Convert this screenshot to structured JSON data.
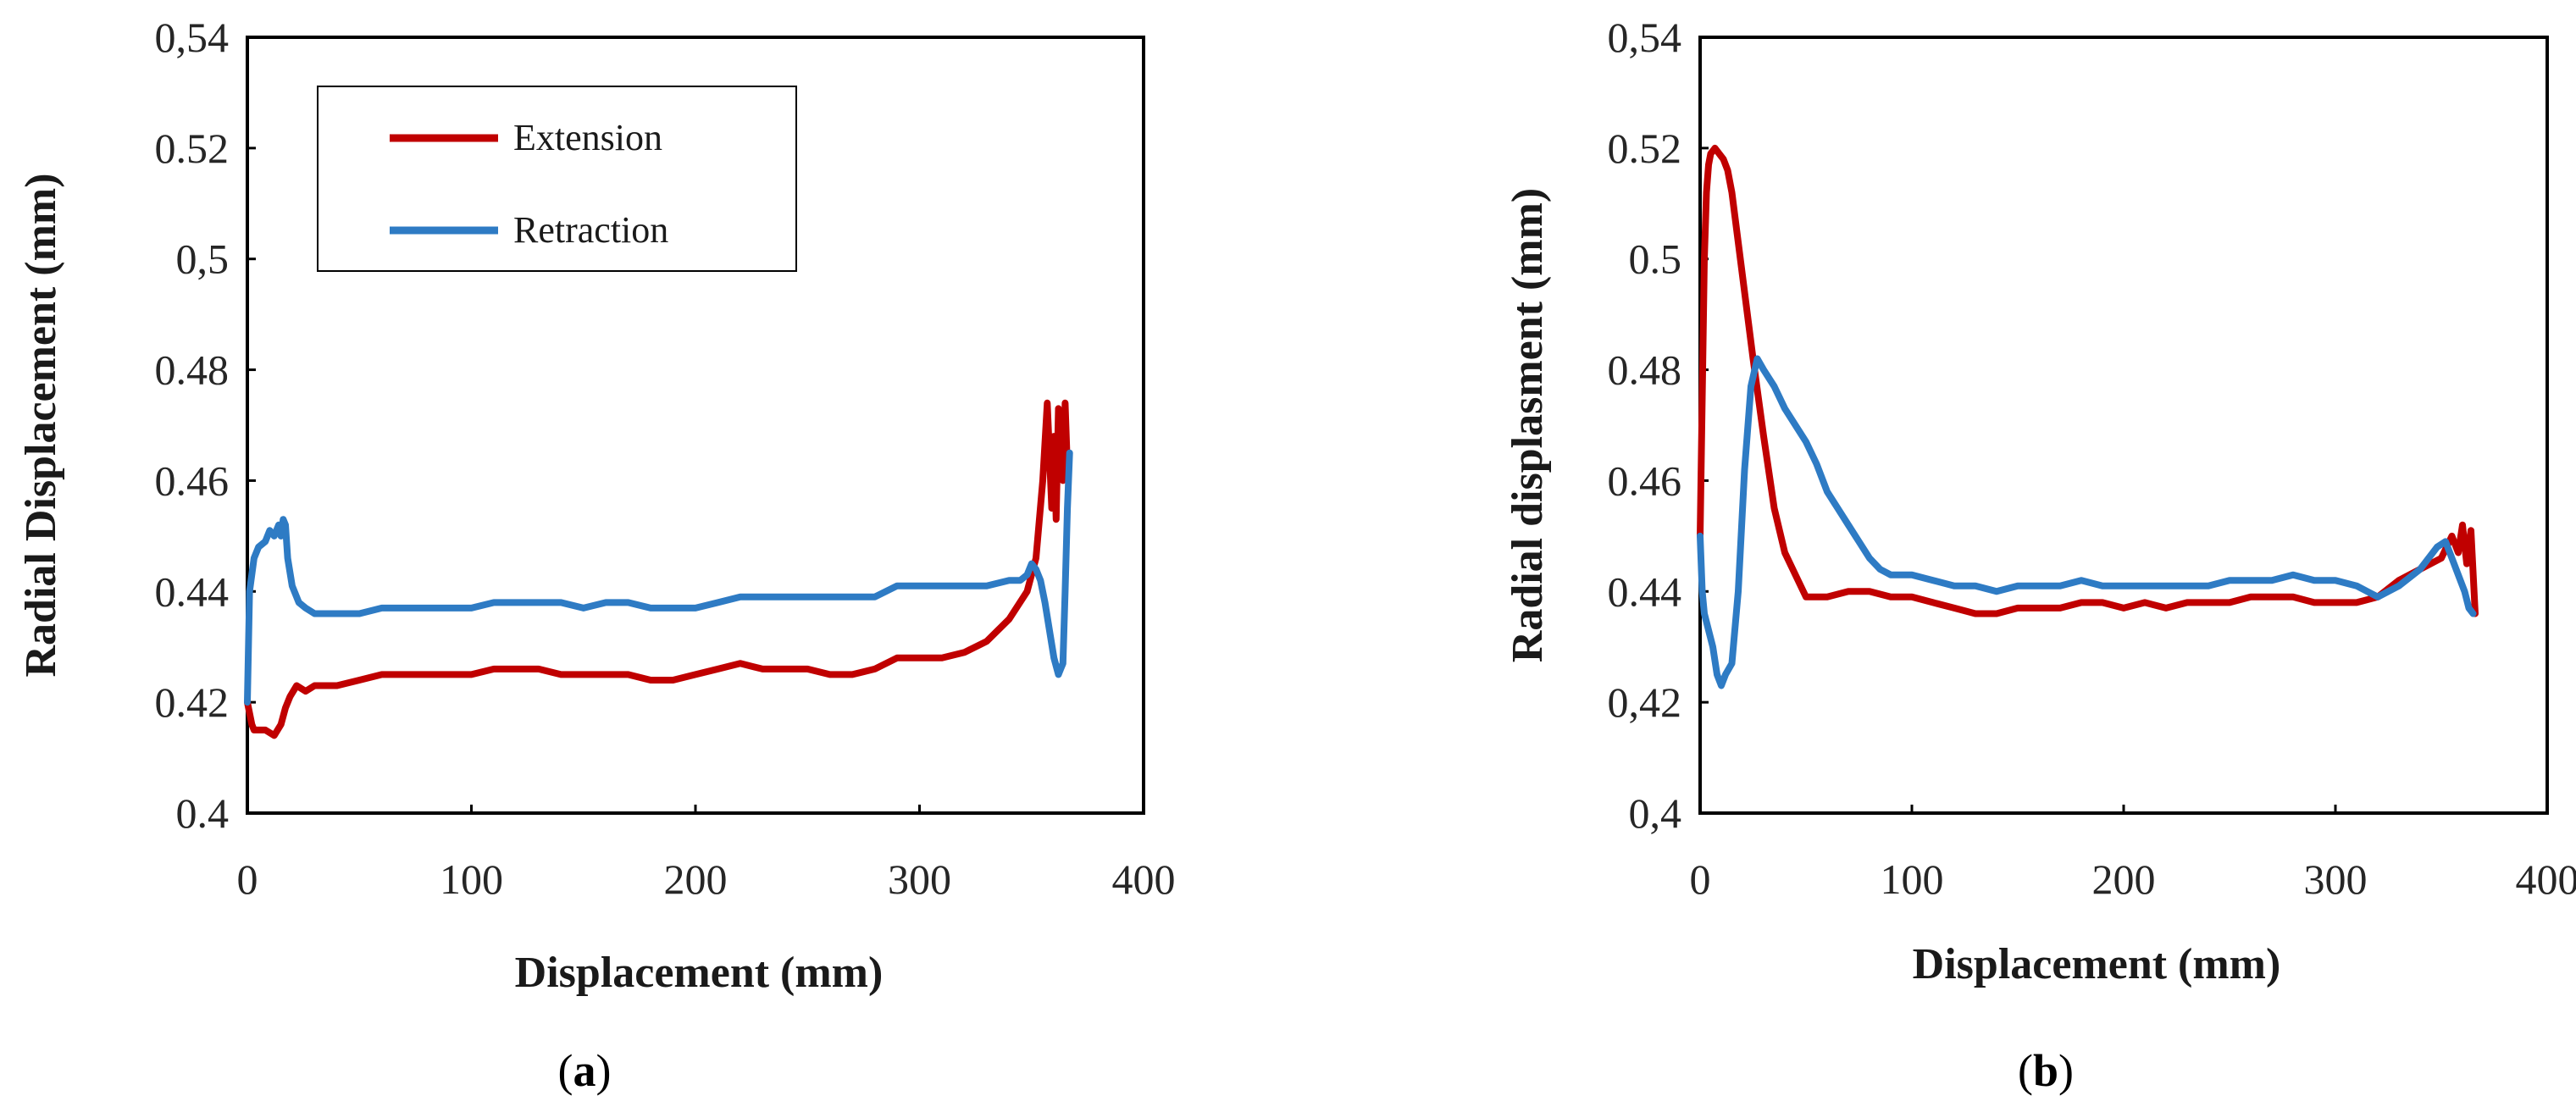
{
  "chart_data": [
    {
      "type": "line",
      "panel": "a",
      "caption_open": "(",
      "caption_letter": "a",
      "caption_close": ")",
      "xlabel": "Displacement (mm)",
      "ylabel": "Radial Displacement (mm)",
      "xlim": [
        0,
        400
      ],
      "ylim": [
        0.4,
        0.54
      ],
      "xticks": [
        0,
        100,
        200,
        300,
        400
      ],
      "xtick_labels": [
        "0",
        "100",
        "200",
        "300",
        "400"
      ],
      "yticks": [
        0.4,
        0.42,
        0.44,
        0.46,
        0.48,
        0.5,
        0.52,
        0.54
      ],
      "ytick_labels": [
        "0.4",
        "0.42",
        "0.44",
        "0.46",
        "0.48",
        "0,5",
        "0.52",
        "0,54"
      ],
      "legend": {
        "position": "top-left",
        "entries": [
          "Extension",
          "Retraction"
        ]
      },
      "series": [
        {
          "name": "Extension",
          "color": "#C00000",
          "x": [
            0,
            2,
            3,
            5,
            8,
            12,
            15,
            17,
            19,
            22,
            26,
            30,
            40,
            50,
            60,
            70,
            80,
            90,
            100,
            110,
            120,
            130,
            140,
            150,
            160,
            170,
            180,
            190,
            200,
            210,
            220,
            230,
            240,
            250,
            260,
            270,
            280,
            290,
            300,
            310,
            320,
            330,
            340,
            348,
            352,
            355,
            357,
            359,
            360,
            361,
            362,
            364,
            365,
            366
          ],
          "y": [
            0.42,
            0.416,
            0.415,
            0.415,
            0.415,
            0.414,
            0.416,
            0.419,
            0.421,
            0.423,
            0.422,
            0.423,
            0.423,
            0.424,
            0.425,
            0.425,
            0.425,
            0.425,
            0.425,
            0.426,
            0.426,
            0.426,
            0.425,
            0.425,
            0.425,
            0.425,
            0.424,
            0.424,
            0.425,
            0.426,
            0.427,
            0.426,
            0.426,
            0.426,
            0.425,
            0.425,
            0.426,
            0.428,
            0.428,
            0.428,
            0.429,
            0.431,
            0.435,
            0.44,
            0.446,
            0.46,
            0.474,
            0.455,
            0.468,
            0.453,
            0.473,
            0.46,
            0.474,
            0.462
          ]
        },
        {
          "name": "Retraction",
          "color": "#2E7BC4",
          "x": [
            0,
            1,
            3,
            5,
            8,
            10,
            12,
            14,
            15,
            16,
            17,
            18,
            20,
            23,
            26,
            30,
            40,
            50,
            60,
            70,
            80,
            90,
            100,
            110,
            120,
            130,
            140,
            150,
            160,
            170,
            180,
            190,
            200,
            210,
            220,
            230,
            240,
            250,
            260,
            270,
            280,
            290,
            300,
            310,
            320,
            330,
            340,
            345,
            348,
            350,
            352,
            354,
            356,
            358,
            360,
            362,
            363,
            364,
            365,
            366,
            367
          ],
          "y": [
            0.42,
            0.44,
            0.446,
            0.448,
            0.449,
            0.451,
            0.45,
            0.452,
            0.45,
            0.453,
            0.452,
            0.446,
            0.441,
            0.438,
            0.437,
            0.436,
            0.436,
            0.436,
            0.437,
            0.437,
            0.437,
            0.437,
            0.437,
            0.438,
            0.438,
            0.438,
            0.438,
            0.437,
            0.438,
            0.438,
            0.437,
            0.437,
            0.437,
            0.438,
            0.439,
            0.439,
            0.439,
            0.439,
            0.439,
            0.439,
            0.439,
            0.441,
            0.441,
            0.441,
            0.441,
            0.441,
            0.442,
            0.442,
            0.443,
            0.445,
            0.444,
            0.442,
            0.438,
            0.433,
            0.428,
            0.425,
            0.426,
            0.427,
            0.44,
            0.455,
            0.465
          ]
        }
      ]
    },
    {
      "type": "line",
      "panel": "b",
      "caption_open": "(",
      "caption_letter": "b",
      "caption_close": ")",
      "xlabel": "Displacement (mm)",
      "ylabel": "Radial displasment (mm)",
      "xlim": [
        0,
        400
      ],
      "ylim": [
        0.4,
        0.54
      ],
      "xticks": [
        0,
        100,
        200,
        300,
        400
      ],
      "xtick_labels": [
        "0",
        "100",
        "200",
        "300",
        "400"
      ],
      "yticks": [
        0.4,
        0.42,
        0.44,
        0.46,
        0.48,
        0.5,
        0.52,
        0.54
      ],
      "ytick_labels": [
        "0,4",
        "0,42",
        "0.44",
        "0.46",
        "0.48",
        "0.5",
        "0.52",
        "0,54"
      ],
      "series": [
        {
          "name": "Extension",
          "color": "#C00000",
          "x": [
            0,
            1,
            2,
            3,
            4,
            5,
            7,
            9,
            11,
            13,
            15,
            18,
            21,
            25,
            30,
            35,
            40,
            45,
            50,
            55,
            60,
            70,
            80,
            90,
            100,
            110,
            120,
            130,
            140,
            150,
            160,
            170,
            180,
            190,
            200,
            210,
            220,
            230,
            240,
            250,
            260,
            270,
            280,
            290,
            300,
            310,
            320,
            330,
            340,
            350,
            355,
            358,
            360,
            362,
            364,
            366
          ],
          "y": [
            0.45,
            0.475,
            0.5,
            0.512,
            0.517,
            0.519,
            0.52,
            0.519,
            0.518,
            0.516,
            0.512,
            0.503,
            0.494,
            0.482,
            0.468,
            0.455,
            0.447,
            0.443,
            0.439,
            0.439,
            0.439,
            0.44,
            0.44,
            0.439,
            0.439,
            0.438,
            0.437,
            0.436,
            0.436,
            0.437,
            0.437,
            0.437,
            0.438,
            0.438,
            0.437,
            0.438,
            0.437,
            0.438,
            0.438,
            0.438,
            0.439,
            0.439,
            0.439,
            0.438,
            0.438,
            0.438,
            0.439,
            0.442,
            0.444,
            0.446,
            0.45,
            0.447,
            0.452,
            0.445,
            0.451,
            0.436
          ]
        },
        {
          "name": "Retraction",
          "color": "#2E7BC4",
          "x": [
            0,
            1,
            2,
            4,
            6,
            8,
            10,
            12,
            15,
            18,
            21,
            24,
            27,
            30,
            35,
            40,
            45,
            50,
            55,
            60,
            65,
            70,
            75,
            80,
            85,
            90,
            100,
            110,
            120,
            130,
            140,
            150,
            160,
            170,
            180,
            190,
            200,
            210,
            220,
            230,
            240,
            250,
            260,
            270,
            280,
            290,
            300,
            310,
            320,
            330,
            340,
            348,
            352,
            355,
            358,
            361,
            363,
            365
          ],
          "y": [
            0.45,
            0.44,
            0.436,
            0.433,
            0.43,
            0.425,
            0.423,
            0.425,
            0.427,
            0.44,
            0.462,
            0.477,
            0.482,
            0.48,
            0.477,
            0.473,
            0.47,
            0.467,
            0.463,
            0.458,
            0.455,
            0.452,
            0.449,
            0.446,
            0.444,
            0.443,
            0.443,
            0.442,
            0.441,
            0.441,
            0.44,
            0.441,
            0.441,
            0.441,
            0.442,
            0.441,
            0.441,
            0.441,
            0.441,
            0.441,
            0.441,
            0.442,
            0.442,
            0.442,
            0.443,
            0.442,
            0.442,
            0.441,
            0.439,
            0.441,
            0.444,
            0.448,
            0.449,
            0.446,
            0.443,
            0.44,
            0.437,
            0.436
          ]
        }
      ]
    }
  ]
}
